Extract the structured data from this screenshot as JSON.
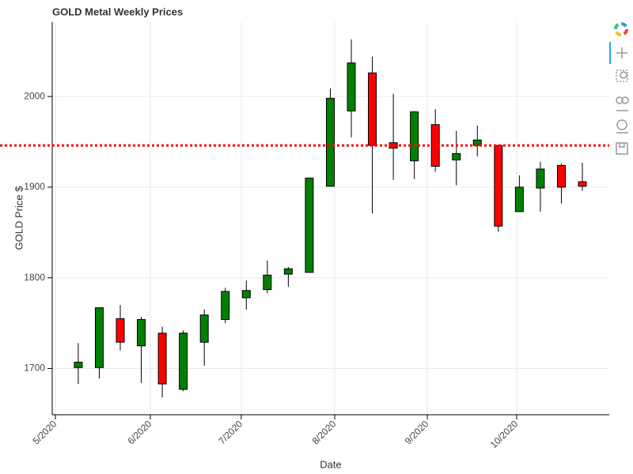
{
  "chart_data": {
    "type": "candlestick",
    "title": "GOLD Metal Weekly Prices",
    "x_label": "Date",
    "y_label": "GOLD Price $",
    "categories": [
      null,
      null,
      null,
      null,
      null,
      null,
      null,
      null,
      null,
      null,
      null,
      null,
      null,
      null,
      null,
      null,
      null,
      null,
      null,
      null,
      null,
      null,
      null,
      null,
      null
    ],
    "open": [
      1701,
      1701,
      1755,
      1725,
      1739,
      1677,
      1729,
      1754,
      1778,
      1787,
      1804,
      1806,
      1901,
      1984,
      2026,
      1949,
      1929,
      1969,
      1930,
      1946,
      1946,
      1873,
      1899,
      1924,
      1906
    ],
    "high": [
      1728,
      1767,
      1770,
      1757,
      1746,
      1742,
      1765,
      1789,
      1797,
      1819,
      1812,
      1910,
      2009,
      2063,
      2044,
      2003,
      1984,
      1986,
      1962,
      1968,
      1946,
      1913,
      1928,
      1926,
      1927
    ],
    "low": [
      1683,
      1689,
      1720,
      1684,
      1668,
      1675,
      1703,
      1750,
      1765,
      1783,
      1790,
      1806,
      1901,
      1955,
      1871,
      1908,
      1909,
      1917,
      1902,
      1934,
      1851,
      1873,
      1873,
      1882,
      1896
    ],
    "close": [
      1707,
      1767,
      1729,
      1754,
      1683,
      1739,
      1759,
      1785,
      1786,
      1803,
      1810,
      1910,
      1998,
      2037,
      1946,
      1943,
      1983,
      1923,
      1937,
      1952,
      1857,
      1900,
      1920,
      1900,
      1901
    ],
    "increasing_color": "#008000",
    "decreasing_color": "#ff0000",
    "reference_line": {
      "value": 1946,
      "color": "#ff0000"
    },
    "xlim": [
      -1.24,
      25.28
    ],
    "xticks": [
      {
        "value": -1.09,
        "label": "5/2020"
      },
      {
        "value": 3.43,
        "label": "6/2020"
      },
      {
        "value": 7.76,
        "label": "7/2020"
      },
      {
        "value": 12.21,
        "label": "8/2020"
      },
      {
        "value": 16.62,
        "label": "9/2020"
      },
      {
        "value": 20.87,
        "label": "10/2020"
      }
    ],
    "ylim": [
      1649,
      2082
    ],
    "yticks": [
      1700,
      1800,
      1900,
      2000
    ],
    "grid": true
  }
}
